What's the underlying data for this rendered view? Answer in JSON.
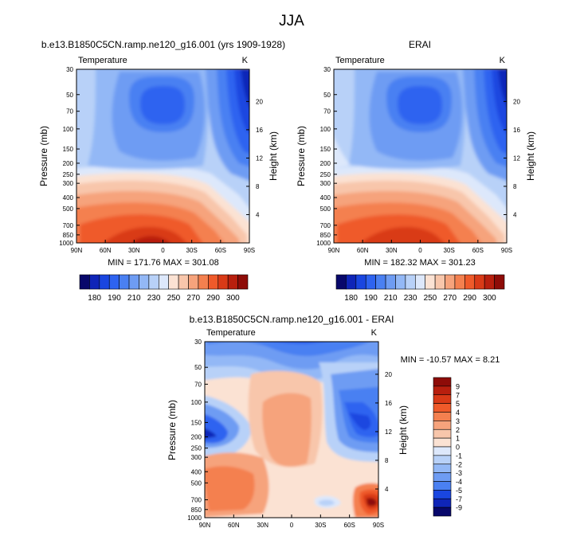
{
  "page_title": "JJA",
  "panels": {
    "model": {
      "title": "b.e13.B1850C5CN.ramp.ne120_g16.001 (yrs 1909-1928)",
      "left_label": "Temperature",
      "right_label": "K",
      "stats": "MIN = 171.76   MAX = 301.08"
    },
    "obs": {
      "title": "ERAI",
      "left_label": "Temperature",
      "right_label": "K",
      "stats": "MIN = 182.32   MAX = 301.23"
    },
    "diff": {
      "title": "b.e13.B1850C5CN.ramp.ne120_g16.001 - ERAI",
      "left_label": "Temperature",
      "right_label": "K",
      "stats": "MIN = -10.57  MAX =   8.21"
    }
  },
  "chart_data": [
    {
      "type": "heatmap",
      "id": "model",
      "title": "b.e13.B1850C5CN.ramp.ne120_g16.001 (yrs 1909-1928)",
      "xlabel": "",
      "ylabel": "Pressure (mb)",
      "y2label": "Height (km)",
      "x_ticks": [
        "90N",
        "60N",
        "30N",
        "0",
        "30S",
        "60S",
        "90S"
      ],
      "x_range": [
        90,
        -90
      ],
      "y_ticks": [
        30,
        50,
        70,
        100,
        150,
        200,
        250,
        300,
        400,
        500,
        700,
        850,
        1000
      ],
      "y_range": [
        30,
        1000
      ],
      "y2_ticks": [
        4,
        8,
        12,
        16,
        20
      ],
      "min": 171.76,
      "max": 301.08,
      "units": "K"
    },
    {
      "type": "heatmap",
      "id": "obs",
      "title": "ERAI",
      "xlabel": "",
      "ylabel": "Pressure (mb)",
      "y2label": "Height (km)",
      "x_ticks": [
        "90N",
        "60N",
        "30N",
        "0",
        "30S",
        "60S",
        "90S"
      ],
      "x_range": [
        90,
        -90
      ],
      "y_ticks": [
        30,
        50,
        70,
        100,
        150,
        200,
        250,
        300,
        400,
        500,
        700,
        850,
        1000
      ],
      "y_range": [
        30,
        1000
      ],
      "y2_ticks": [
        4,
        8,
        12,
        16,
        20
      ],
      "min": 182.32,
      "max": 301.23,
      "units": "K"
    },
    {
      "type": "heatmap",
      "id": "diff",
      "title": "b.e13.B1850C5CN.ramp.ne120_g16.001 - ERAI",
      "xlabel": "",
      "ylabel": "Pressure (mb)",
      "y2label": "Height (km)",
      "x_ticks": [
        "90N",
        "60N",
        "30N",
        "0",
        "30S",
        "60S",
        "90S"
      ],
      "x_range": [
        90,
        -90
      ],
      "y_ticks": [
        30,
        50,
        70,
        100,
        150,
        200,
        250,
        300,
        400,
        500,
        700,
        850,
        1000
      ],
      "y_range": [
        30,
        1000
      ],
      "y2_ticks": [
        4,
        8,
        12,
        16,
        20
      ],
      "min": -10.57,
      "max": 8.21,
      "units": "K"
    }
  ],
  "colorbar_abs": {
    "labels": [
      "180",
      "190",
      "210",
      "230",
      "250",
      "270",
      "290",
      "300"
    ],
    "colors": [
      "#08086b",
      "#0f25b8",
      "#1a46e0",
      "#2e63f0",
      "#4a80f2",
      "#6e9cf3",
      "#93b8f6",
      "#b8d1f8",
      "#dde8fb",
      "#fbe2d3",
      "#f8c6ab",
      "#f6a37c",
      "#f4804f",
      "#ef5a2a",
      "#d93a17",
      "#b81f0e",
      "#8e0c08"
    ]
  },
  "colorbar_diff": {
    "labels": [
      "9",
      "7",
      "5",
      "4",
      "3",
      "2",
      "1",
      "0",
      "-1",
      "-2",
      "-3",
      "-4",
      "-5",
      "-7",
      "-9"
    ],
    "colors": [
      "#8e0c08",
      "#b81f0e",
      "#d93a17",
      "#ef5a2a",
      "#f4804f",
      "#f6a37c",
      "#f8c6ab",
      "#fbe2d3",
      "#dde8fb",
      "#b8d1f8",
      "#93b8f6",
      "#6e9cf3",
      "#4a80f2",
      "#1a46e0",
      "#0f25b8",
      "#08086b"
    ]
  }
}
